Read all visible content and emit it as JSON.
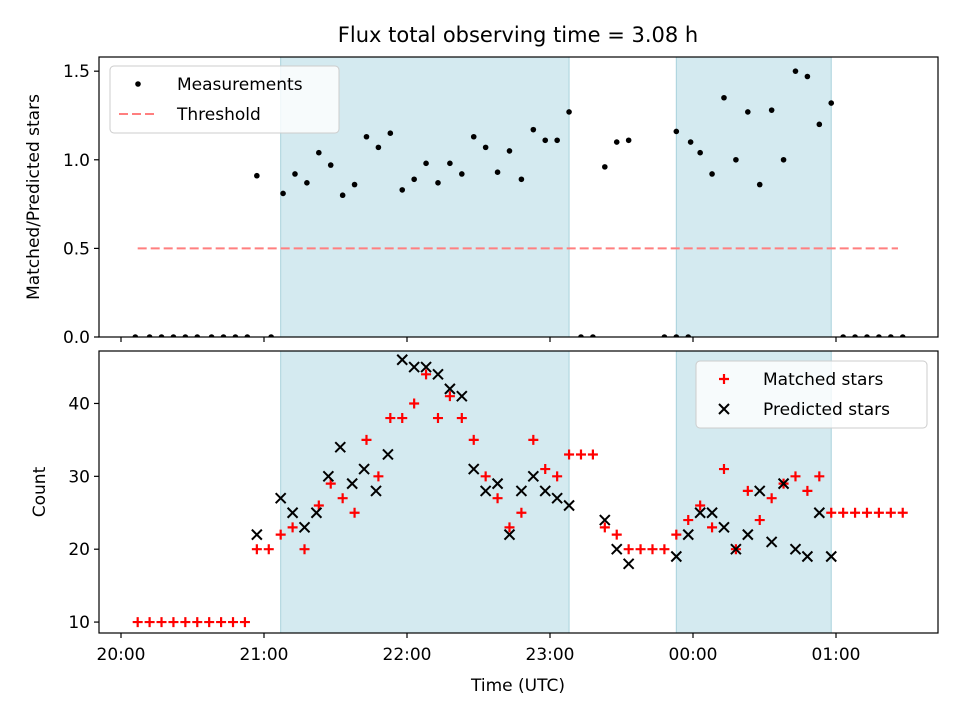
{
  "figure": {
    "title": "Flux total observing time = 3.08 h"
  },
  "chart_data": [
    {
      "type": "scatter",
      "title": "Flux total observing time = 3.08 h",
      "xlabel": "",
      "ylabel": "Matched/Predicted stars",
      "yticks": [
        "0.0",
        "0.5",
        "1.0",
        "1.5"
      ],
      "ylim": [
        0,
        1.58
      ],
      "shaded_intervals": [
        [
          "21:07",
          "23:08"
        ],
        [
          "23:53",
          "00:58"
        ]
      ],
      "legend": {
        "placement": "upper-left",
        "entries": [
          "Measurements",
          "Threshold"
        ]
      },
      "series": [
        {
          "name": "Measurements",
          "marker": "dot",
          "color": "#000000",
          "points": [
            [
              "20:06",
              0
            ],
            [
              "20:12",
              0
            ],
            [
              "20:17",
              0
            ],
            [
              "20:22",
              0
            ],
            [
              "20:27",
              0
            ],
            [
              "20:32",
              0
            ],
            [
              "20:38",
              0
            ],
            [
              "20:43",
              0
            ],
            [
              "20:48",
              0
            ],
            [
              "20:53",
              0
            ],
            [
              "20:57",
              0.91
            ],
            [
              "21:03",
              0
            ],
            [
              "21:08",
              0.81
            ],
            [
              "21:13",
              0.92
            ],
            [
              "21:18",
              0.87
            ],
            [
              "21:23",
              1.04
            ],
            [
              "21:28",
              0.97
            ],
            [
              "21:33",
              0.8
            ],
            [
              "21:38",
              0.86
            ],
            [
              "21:43",
              1.13
            ],
            [
              "21:48",
              1.07
            ],
            [
              "21:53",
              1.15
            ],
            [
              "21:58",
              0.83
            ],
            [
              "22:03",
              0.89
            ],
            [
              "22:08",
              0.98
            ],
            [
              "22:13",
              0.87
            ],
            [
              "22:18",
              0.98
            ],
            [
              "22:23",
              0.92
            ],
            [
              "22:28",
              1.13
            ],
            [
              "22:33",
              1.07
            ],
            [
              "22:38",
              0.93
            ],
            [
              "22:43",
              1.05
            ],
            [
              "22:48",
              0.89
            ],
            [
              "22:53",
              1.17
            ],
            [
              "22:58",
              1.11
            ],
            [
              "23:03",
              1.11
            ],
            [
              "23:08",
              1.27
            ],
            [
              "23:13",
              0
            ],
            [
              "23:18",
              0
            ],
            [
              "23:23",
              0.96
            ],
            [
              "23:28",
              1.1
            ],
            [
              "23:33",
              1.11
            ],
            [
              "23:48",
              0
            ],
            [
              "23:53",
              0
            ],
            [
              "23:58",
              0
            ],
            [
              "23:53",
              1.16
            ],
            [
              "23:59",
              1.1
            ],
            [
              "00:03",
              1.04
            ],
            [
              "00:08",
              0.92
            ],
            [
              "00:13",
              1.35
            ],
            [
              "00:18",
              1.0
            ],
            [
              "00:23",
              1.27
            ],
            [
              "00:28",
              0.86
            ],
            [
              "00:33",
              1.28
            ],
            [
              "00:38",
              1.0
            ],
            [
              "00:43",
              1.5
            ],
            [
              "00:48",
              1.47
            ],
            [
              "00:53",
              1.2
            ],
            [
              "00:58",
              1.32
            ],
            [
              "01:03",
              0
            ],
            [
              "01:08",
              0
            ],
            [
              "01:13",
              0
            ],
            [
              "01:18",
              0
            ],
            [
              "01:23",
              0
            ],
            [
              "01:28",
              0
            ]
          ]
        },
        {
          "name": "Threshold",
          "style": "dashed",
          "color": "#ff7f7f",
          "points": [
            [
              "20:07",
              0.5
            ],
            [
              "01:26",
              0.5
            ]
          ]
        }
      ]
    },
    {
      "type": "scatter",
      "xlabel": "Time (UTC)",
      "ylabel": "Count",
      "xticks": [
        "20:00",
        "21:00",
        "22:00",
        "23:00",
        "00:00",
        "01:00"
      ],
      "yticks": [
        "10",
        "20",
        "30",
        "40"
      ],
      "ylim": [
        8.5,
        47.2
      ],
      "shaded_intervals": [
        [
          "21:07",
          "23:08"
        ],
        [
          "23:53",
          "00:58"
        ]
      ],
      "legend": {
        "placement": "upper-right",
        "entries": [
          "Matched stars",
          "Predicted stars"
        ]
      },
      "series": [
        {
          "name": "Matched stars",
          "marker": "plus",
          "color": "#ff0000",
          "points": [
            [
              "20:07",
              10
            ],
            [
              "20:12",
              10
            ],
            [
              "20:17",
              10
            ],
            [
              "20:22",
              10
            ],
            [
              "20:27",
              10
            ],
            [
              "20:32",
              10
            ],
            [
              "20:37",
              10
            ],
            [
              "20:42",
              10
            ],
            [
              "20:47",
              10
            ],
            [
              "20:52",
              10
            ],
            [
              "20:57",
              20
            ],
            [
              "21:02",
              20
            ],
            [
              "21:07",
              22
            ],
            [
              "21:12",
              23
            ],
            [
              "21:17",
              20
            ],
            [
              "21:23",
              26
            ],
            [
              "21:28",
              29
            ],
            [
              "21:33",
              27
            ],
            [
              "21:38",
              25
            ],
            [
              "21:43",
              35
            ],
            [
              "21:48",
              30
            ],
            [
              "21:53",
              38
            ],
            [
              "21:58",
              38
            ],
            [
              "22:03",
              40
            ],
            [
              "22:08",
              44
            ],
            [
              "22:13",
              38
            ],
            [
              "22:18",
              41
            ],
            [
              "22:23",
              38
            ],
            [
              "22:28",
              35
            ],
            [
              "22:33",
              30
            ],
            [
              "22:38",
              27
            ],
            [
              "22:43",
              23
            ],
            [
              "22:48",
              25
            ],
            [
              "22:53",
              35
            ],
            [
              "22:58",
              31
            ],
            [
              "23:03",
              30
            ],
            [
              "23:08",
              33
            ],
            [
              "23:13",
              33
            ],
            [
              "23:18",
              33
            ],
            [
              "23:23",
              23
            ],
            [
              "23:28",
              22
            ],
            [
              "23:33",
              20
            ],
            [
              "23:38",
              20
            ],
            [
              "23:43",
              20
            ],
            [
              "23:48",
              20
            ],
            [
              "23:53",
              22
            ],
            [
              "23:58",
              24
            ],
            [
              "00:03",
              26
            ],
            [
              "00:08",
              23
            ],
            [
              "00:13",
              31
            ],
            [
              "00:18",
              20
            ],
            [
              "00:23",
              28
            ],
            [
              "00:28",
              24
            ],
            [
              "00:33",
              27
            ],
            [
              "00:38",
              29
            ],
            [
              "00:43",
              30
            ],
            [
              "00:48",
              28
            ],
            [
              "00:53",
              30
            ],
            [
              "00:58",
              25
            ],
            [
              "01:03",
              25
            ],
            [
              "01:08",
              25
            ],
            [
              "01:13",
              25
            ],
            [
              "01:18",
              25
            ],
            [
              "01:23",
              25
            ],
            [
              "01:28",
              25
            ]
          ]
        },
        {
          "name": "Predicted stars",
          "marker": "x",
          "color": "#000000",
          "points": [
            [
              "20:57",
              22
            ],
            [
              "21:07",
              27
            ],
            [
              "21:12",
              25
            ],
            [
              "21:17",
              23
            ],
            [
              "21:22",
              25
            ],
            [
              "21:27",
              30
            ],
            [
              "21:32",
              34
            ],
            [
              "21:37",
              29
            ],
            [
              "21:42",
              31
            ],
            [
              "21:47",
              28
            ],
            [
              "21:52",
              33
            ],
            [
              "21:58",
              46
            ],
            [
              "22:03",
              45
            ],
            [
              "22:08",
              45
            ],
            [
              "22:13",
              44
            ],
            [
              "22:18",
              42
            ],
            [
              "22:23",
              41
            ],
            [
              "22:28",
              31
            ],
            [
              "22:33",
              28
            ],
            [
              "22:38",
              29
            ],
            [
              "22:43",
              22
            ],
            [
              "22:48",
              28
            ],
            [
              "22:53",
              30
            ],
            [
              "22:58",
              28
            ],
            [
              "23:03",
              27
            ],
            [
              "23:08",
              26
            ],
            [
              "23:23",
              24
            ],
            [
              "23:28",
              20
            ],
            [
              "23:33",
              18
            ],
            [
              "23:53",
              19
            ],
            [
              "23:58",
              22
            ],
            [
              "00:03",
              25
            ],
            [
              "00:08",
              25
            ],
            [
              "00:13",
              23
            ],
            [
              "00:18",
              20
            ],
            [
              "00:23",
              22
            ],
            [
              "00:28",
              28
            ],
            [
              "00:33",
              21
            ],
            [
              "00:38",
              29
            ],
            [
              "00:43",
              20
            ],
            [
              "00:48",
              19
            ],
            [
              "00:53",
              25
            ],
            [
              "00:58",
              19
            ]
          ]
        }
      ]
    }
  ]
}
